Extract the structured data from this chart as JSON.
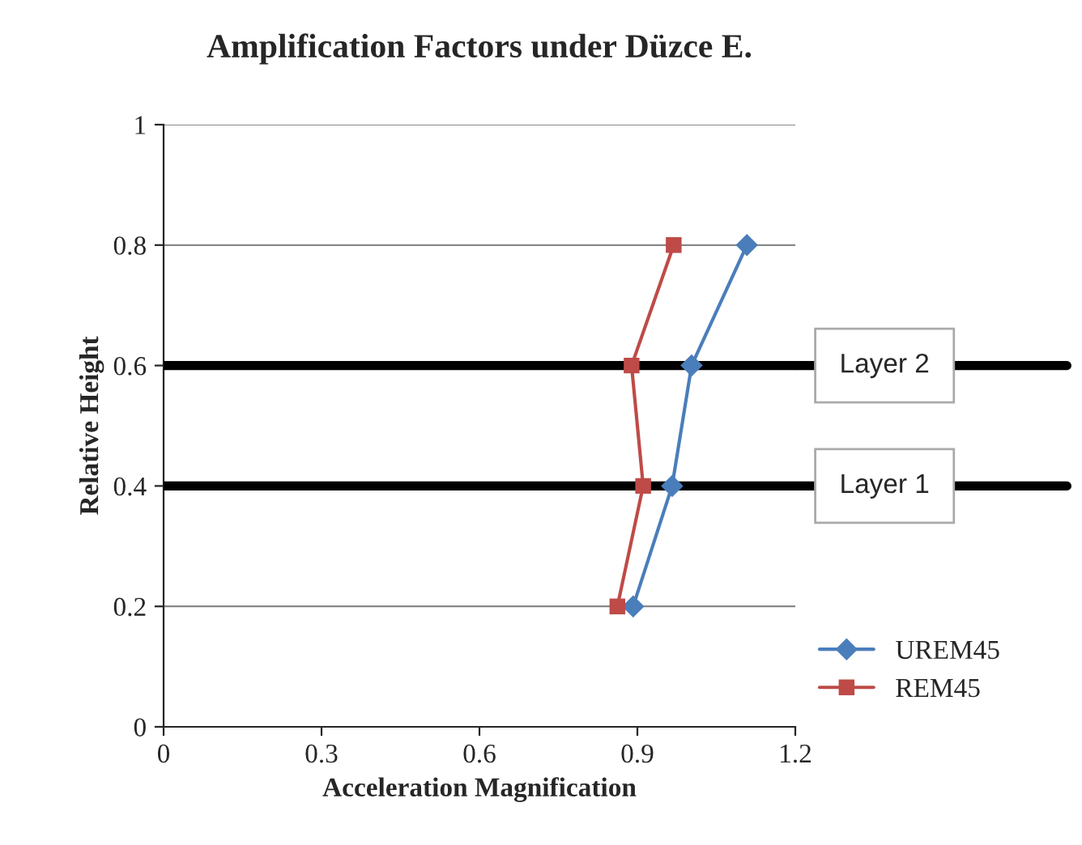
{
  "chart_data": {
    "type": "line",
    "title": "Amplification Factors under Düzce E.",
    "xlabel": "Acceleration Magnification",
    "ylabel": "Relative Height",
    "series": [
      {
        "name": "UREM45",
        "color": "#4a7ebb",
        "x": [
          0.892,
          0.966,
          1.003,
          1.108
        ],
        "values": [
          0.2,
          0.4,
          0.6,
          0.8
        ],
        "marker": "diamond"
      },
      {
        "name": "REM45",
        "color": "#be4b48",
        "x": [
          0.862,
          0.911,
          0.889,
          0.969
        ],
        "values": [
          0.2,
          0.4,
          0.6,
          0.8
        ],
        "marker": "square"
      }
    ],
    "xlim": [
      0,
      1.2
    ],
    "xticks": [
      0,
      0.3,
      0.6,
      0.9,
      1.2
    ],
    "ylim": [
      0,
      1
    ],
    "yticks": [
      0,
      0.2,
      0.4,
      0.6,
      0.8,
      1
    ],
    "ref_lines": [
      {
        "axis": "y",
        "value": 0.6,
        "label": "Layer 2",
        "color": "#000000"
      },
      {
        "axis": "y",
        "value": 0.4,
        "label": "Layer 1",
        "color": "#000000"
      }
    ],
    "grid": "y",
    "legend": "bottom right",
    "line_style": "solid"
  }
}
